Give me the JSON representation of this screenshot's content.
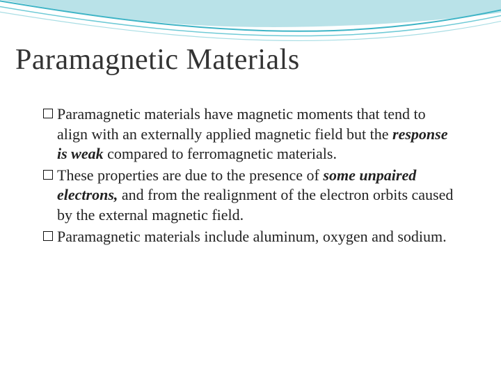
{
  "slide": {
    "title": "Paramagnetic Materials",
    "title_color": "#333333",
    "title_fontsize": 42,
    "body_fontsize": 22,
    "body_color": "#222222",
    "bullets": [
      {
        "runs": [
          {
            "text": "Paramagnetic materials have magnetic moments that tend to align with an externally applied magnetic field but the ",
            "style": "normal"
          },
          {
            "text": "response is weak",
            "style": "italic-bold"
          },
          {
            "text": " compared to ferromagnetic materials.",
            "style": "normal"
          }
        ]
      },
      {
        "runs": [
          {
            "text": "These properties are due to the presence of ",
            "style": "normal"
          },
          {
            "text": "some unpaired electrons,",
            "style": "italic-bold"
          },
          {
            "text": " and from the realignment of the electron orbits caused by the external magnetic field.",
            "style": "normal"
          }
        ]
      },
      {
        "runs": [
          {
            "text": "Paramagnetic materials include aluminum, oxygen and sodium.",
            "style": "normal"
          }
        ]
      }
    ],
    "waves": {
      "bg_band_color": "#b9e2e8",
      "stroke1": "#3eb4c6",
      "stroke2": "#6fcad6",
      "stroke3": "#a8dde4",
      "description": "Decorative curved wave header in light teal tones"
    }
  }
}
